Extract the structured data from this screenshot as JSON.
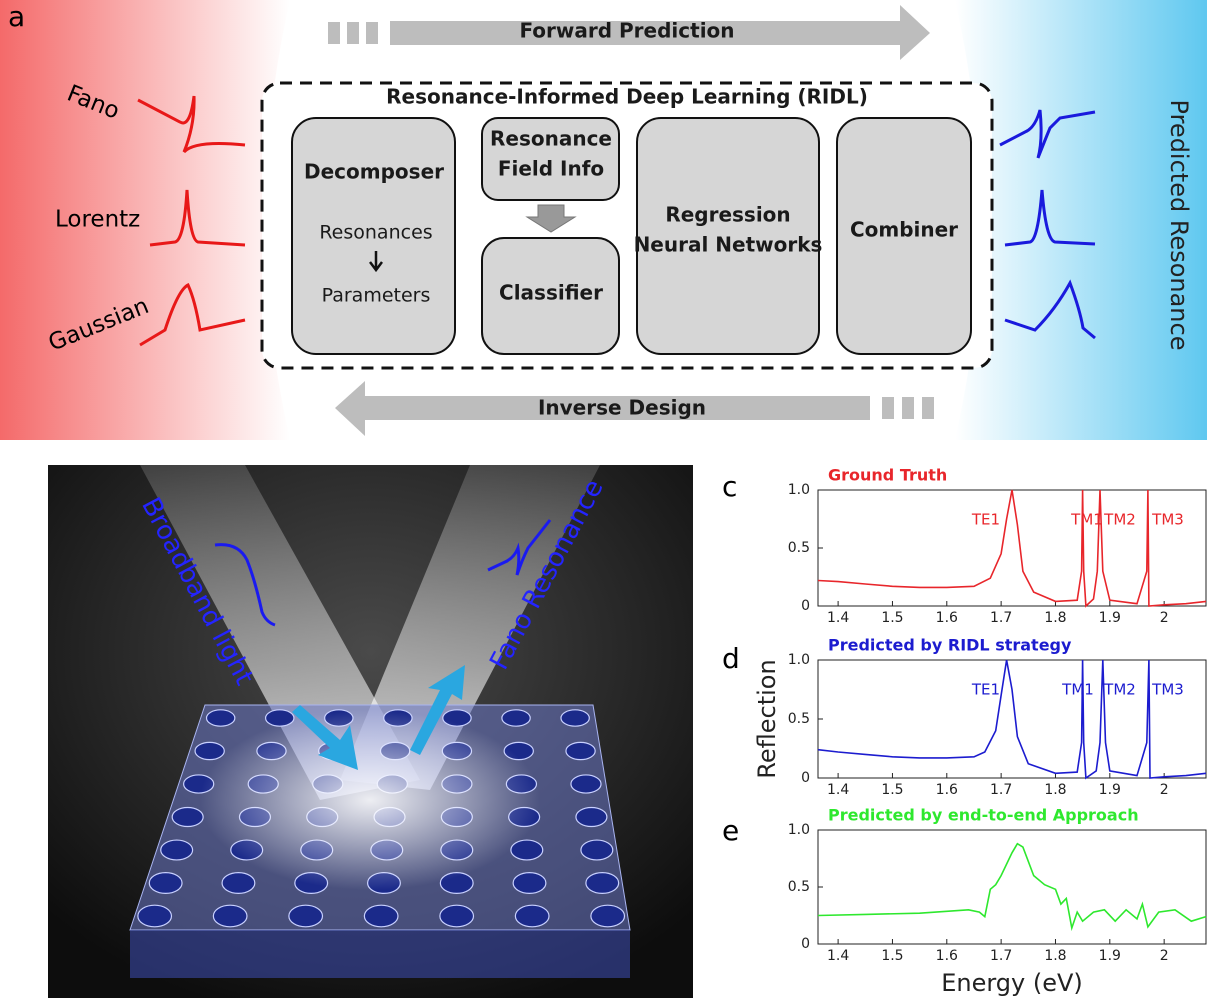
{
  "panel_labels": [
    "a",
    "c",
    "d",
    "e"
  ],
  "diagram": {
    "forward": "Forward Prediction",
    "inverse": "Inverse Design",
    "framework": "Resonance-Informed Deep Learning (RIDL)",
    "decomposer": {
      "title": "Decomposer",
      "from": "Resonances",
      "to": "Parameters"
    },
    "field_info": [
      "Resonance",
      "Field Info"
    ],
    "classifier": "Classifier",
    "regression": [
      "Regression",
      "Neural Networks"
    ],
    "combiner": "Combiner",
    "inputs": [
      "Fano",
      "Lorentz",
      "Gaussian"
    ],
    "output": "Predicted Resonance"
  },
  "photo": {
    "labels": [
      "Broadband light",
      "Fano Resonance"
    ]
  },
  "chart_data": [
    {
      "type": "line",
      "title": "Ground Truth",
      "color": "#e8262b",
      "annotations": [
        "TE1",
        "TM1",
        "TM2",
        "TM3"
      ],
      "x": [
        1.363,
        1.4,
        1.45,
        1.5,
        1.55,
        1.6,
        1.65,
        1.68,
        1.7,
        1.71,
        1.72,
        1.73,
        1.74,
        1.76,
        1.8,
        1.84,
        1.848,
        1.85,
        1.852,
        1.856,
        1.87,
        1.877,
        1.882,
        1.887,
        1.9,
        1.95,
        1.968,
        1.97,
        1.972,
        2.0,
        2.04,
        2.077
      ],
      "values": [
        0.22,
        0.21,
        0.19,
        0.17,
        0.16,
        0.16,
        0.17,
        0.24,
        0.45,
        0.75,
        1.0,
        0.7,
        0.3,
        0.12,
        0.04,
        0.05,
        0.3,
        1.0,
        0.3,
        0,
        0.06,
        0.3,
        1.0,
        0.3,
        0.05,
        0.02,
        0.3,
        1.0,
        0,
        0.01,
        0.02,
        0.04
      ],
      "xlim": [
        1.363,
        2.077
      ],
      "ylim": [
        0,
        1.0
      ],
      "xticks": [
        1.4,
        1.5,
        1.6,
        1.7,
        1.8,
        1.9,
        2
      ],
      "yticks": [
        0,
        0.5,
        {
          "value": 1,
          "label": "1.0"
        }
      ]
    },
    {
      "type": "line",
      "title": "Predicted by RIDL strategy",
      "color": "#1c1ccf",
      "annotations": [
        "TE1",
        "TM1",
        "TM2",
        "TM3"
      ],
      "ylabel": "Reflection",
      "x": [
        1.363,
        1.4,
        1.45,
        1.5,
        1.55,
        1.6,
        1.65,
        1.67,
        1.69,
        1.7,
        1.71,
        1.72,
        1.73,
        1.75,
        1.8,
        1.84,
        1.848,
        1.85,
        1.852,
        1.856,
        1.875,
        1.882,
        1.887,
        1.892,
        1.9,
        1.95,
        1.968,
        1.972,
        1.974,
        2.0,
        2.04,
        2.077
      ],
      "values": [
        0.24,
        0.22,
        0.2,
        0.18,
        0.17,
        0.17,
        0.18,
        0.22,
        0.4,
        0.7,
        1.0,
        0.75,
        0.35,
        0.12,
        0.04,
        0.05,
        0.3,
        1.0,
        0.3,
        0,
        0.06,
        0.3,
        1.0,
        0.3,
        0.06,
        0.02,
        0.3,
        1.0,
        0,
        0.01,
        0.02,
        0.04
      ],
      "xlim": [
        1.363,
        2.077
      ],
      "ylim": [
        0,
        1.0
      ],
      "xticks": [
        1.4,
        1.5,
        1.6,
        1.7,
        1.8,
        1.9,
        2
      ],
      "yticks": [
        0,
        0.5,
        {
          "value": 1,
          "label": "1.0"
        }
      ]
    },
    {
      "type": "line",
      "title": "Predicted by end-to-end Approach",
      "color": "#2ee82e",
      "xlabel": "Energy (eV)",
      "x": [
        1.363,
        1.45,
        1.55,
        1.64,
        1.66,
        1.67,
        1.68,
        1.69,
        1.7,
        1.72,
        1.73,
        1.74,
        1.76,
        1.78,
        1.8,
        1.81,
        1.82,
        1.83,
        1.84,
        1.85,
        1.87,
        1.89,
        1.91,
        1.93,
        1.95,
        1.96,
        1.97,
        1.99,
        2.02,
        2.05,
        2.077
      ],
      "values": [
        0.25,
        0.26,
        0.27,
        0.3,
        0.28,
        0.24,
        0.48,
        0.52,
        0.6,
        0.8,
        0.88,
        0.85,
        0.6,
        0.52,
        0.48,
        0.35,
        0.4,
        0.14,
        0.28,
        0.2,
        0.28,
        0.3,
        0.2,
        0.3,
        0.22,
        0.35,
        0.15,
        0.28,
        0.3,
        0.2,
        0.24
      ],
      "xlim": [
        1.363,
        2.077
      ],
      "ylim": [
        0,
        1.0
      ],
      "xticks": [
        1.4,
        1.5,
        1.6,
        1.7,
        1.8,
        1.9,
        2
      ],
      "yticks": [
        0,
        0.5,
        {
          "value": 1,
          "label": "1.0"
        }
      ]
    }
  ]
}
